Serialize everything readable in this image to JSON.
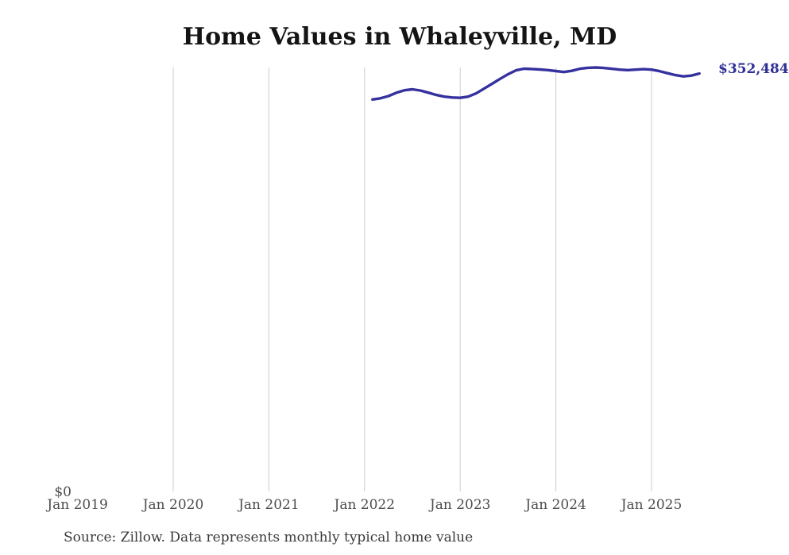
{
  "page": {
    "source_note": "Source: Zillow. Data represents monthly typical home value"
  },
  "colors": {
    "line": "#35319e",
    "end_label": "#2f2f96",
    "gridline": "#cccccc",
    "axis_label": "#4d4d4d",
    "title": "#141414",
    "source": "#3a3a3a",
    "background": "#ffffff"
  },
  "chart_data": {
    "type": "line",
    "title": "Home Values in Whaleyville, MD",
    "xlabel": "",
    "ylabel": "",
    "legend": "none",
    "grid": "vertical-only",
    "y_axis": {
      "zero_label": "$0",
      "min": 0,
      "max": 357600
    },
    "end_label": "$352,484",
    "last_value": 352484,
    "x_ticks": [
      {
        "label": "Jan 2019",
        "month": "2019-01",
        "gridline": false
      },
      {
        "label": "Jan 2020",
        "month": "2020-01",
        "gridline": true
      },
      {
        "label": "Jan 2021",
        "month": "2021-01",
        "gridline": true
      },
      {
        "label": "Jan 2022",
        "month": "2022-01",
        "gridline": true
      },
      {
        "label": "Jan 2023",
        "month": "2023-01",
        "gridline": true
      },
      {
        "label": "Jan 2024",
        "month": "2024-01",
        "gridline": true
      },
      {
        "label": "Jan 2025",
        "month": "2025-01",
        "gridline": true
      }
    ],
    "series": [
      {
        "name": "Monthly typical home value",
        "color": "#35319e",
        "x": [
          "2022-02",
          "2022-03",
          "2022-04",
          "2022-05",
          "2022-06",
          "2022-07",
          "2022-08",
          "2022-09",
          "2022-10",
          "2022-11",
          "2022-12",
          "2023-01",
          "2023-02",
          "2023-03",
          "2023-04",
          "2023-05",
          "2023-06",
          "2023-07",
          "2023-08",
          "2023-09",
          "2023-10",
          "2023-11",
          "2023-12",
          "2024-01",
          "2024-02",
          "2024-03",
          "2024-04",
          "2024-05",
          "2024-06",
          "2024-07",
          "2024-08",
          "2024-09",
          "2024-10",
          "2024-11",
          "2024-12",
          "2025-01",
          "2025-02",
          "2025-03",
          "2025-04",
          "2025-05",
          "2025-06",
          "2025-07"
        ],
        "values": [
          330600,
          331600,
          333500,
          336300,
          338400,
          339200,
          338200,
          336400,
          334400,
          333000,
          332300,
          332000,
          333000,
          335800,
          339800,
          343900,
          348000,
          351900,
          355200,
          356600,
          356300,
          355900,
          355400,
          354600,
          353800,
          354800,
          356500,
          357300,
          357600,
          357200,
          356500,
          355800,
          355400,
          355800,
          356200,
          355800,
          354500,
          352800,
          351200,
          350100,
          350800,
          352484
        ]
      }
    ]
  }
}
